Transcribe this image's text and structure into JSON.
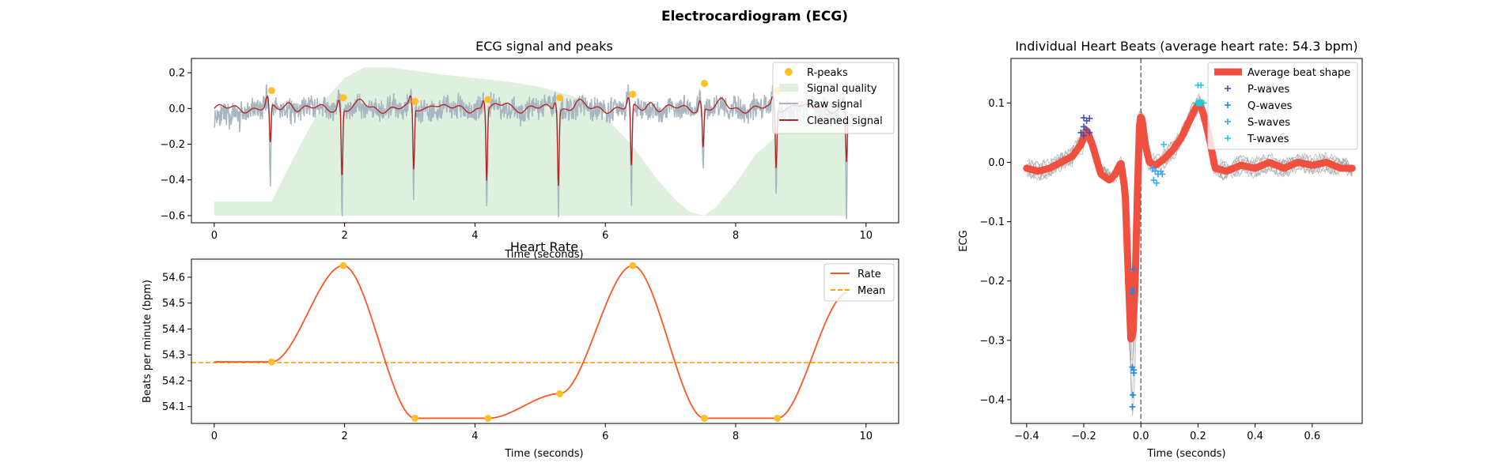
{
  "figure": {
    "title": "Electrocardiogram (ECG)"
  },
  "colors": {
    "rpeak": "#FFC02C",
    "quality": "#DFF0DF",
    "raw": "#A8B6C2",
    "cleaned": "#B22222",
    "rate": "#FF5722",
    "mean": "#FFA000",
    "avg": "#F05040",
    "beats": "#9E9E9E",
    "p": "#3F51B5",
    "q": "#1E88E5",
    "s": "#42A5F5",
    "t": "#26C6DA",
    "vline": "#707070"
  },
  "chart_data": [
    {
      "id": "ecg",
      "type": "line",
      "title": "ECG signal and peaks",
      "xlabel": "Time (seconds)",
      "ylabel": "",
      "xlim": [
        -0.35,
        10.5
      ],
      "ylim": [
        -0.64,
        0.28
      ],
      "xticks": [
        0,
        2,
        4,
        6,
        8,
        10
      ],
      "yticks": [
        -0.6,
        -0.4,
        -0.2,
        0.0,
        0.2
      ],
      "ytick_labels": [
        "−0.6",
        "−0.4",
        "−0.2",
        "0.0",
        "0.2"
      ],
      "legend": {
        "placement": "top-right",
        "entries": [
          "R-peaks",
          "Signal quality",
          "Raw signal",
          "Cleaned signal"
        ]
      },
      "rpeaks": {
        "name": "R-peaks",
        "x": [
          0.88,
          1.98,
          3.08,
          4.2,
          5.3,
          6.42,
          7.52,
          8.64
        ],
        "y": [
          0.1,
          0.06,
          0.04,
          0.05,
          0.06,
          0.08,
          0.14,
          0.1
        ]
      },
      "troughs": {
        "x": [
          0.86,
          1.96,
          3.06,
          4.18,
          5.28,
          6.4,
          7.5,
          8.62,
          9.7
        ],
        "raw": [
          -0.45,
          -0.6,
          -0.48,
          -0.55,
          -0.57,
          -0.55,
          -0.36,
          -0.5,
          -0.6
        ],
        "cleaned": [
          -0.22,
          -0.38,
          -0.35,
          -0.4,
          -0.42,
          -0.35,
          -0.22,
          -0.34,
          -0.3
        ]
      },
      "quality": {
        "name": "Signal quality",
        "x": [
          0,
          0.88,
          1.1,
          1.4,
          1.7,
          2.0,
          2.3,
          2.7,
          3.1,
          3.5,
          4.0,
          4.5,
          5.0,
          5.5,
          6.0,
          6.4,
          6.8,
          7.1,
          7.3,
          7.52,
          7.7,
          8.0,
          8.3,
          8.64,
          9.0,
          9.4,
          9.7
        ],
        "y": [
          -0.52,
          -0.52,
          -0.36,
          -0.15,
          0.05,
          0.17,
          0.23,
          0.23,
          0.21,
          0.19,
          0.17,
          0.15,
          0.12,
          0.07,
          -0.05,
          -0.2,
          -0.4,
          -0.52,
          -0.58,
          -0.6,
          -0.55,
          -0.42,
          -0.26,
          -0.15,
          0.02,
          0.12,
          0.17
        ]
      },
      "raw_signal": {
        "name": "Raw signal",
        "x_range": [
          0,
          9.72
        ]
      },
      "cleaned_signal": {
        "name": "Cleaned signal",
        "x_range": [
          0,
          9.72
        ]
      }
    },
    {
      "id": "rate",
      "type": "line",
      "title": "Heart Rate",
      "xlabel": "Time (seconds)",
      "ylabel": "Beats per minute (bpm)",
      "xlim": [
        -0.35,
        10.5
      ],
      "ylim": [
        54.035,
        54.67
      ],
      "xticks": [
        0,
        2,
        4,
        6,
        8,
        10
      ],
      "yticks": [
        54.1,
        54.2,
        54.3,
        54.4,
        54.5,
        54.6
      ],
      "legend": {
        "placement": "top-right",
        "entries": [
          "Rate",
          "Mean"
        ]
      },
      "rate": {
        "name": "Rate",
        "points_x": [
          0,
          0.88,
          1.98,
          3.08,
          4.2,
          5.3,
          6.42,
          7.52,
          8.64,
          9.72
        ],
        "points_y": [
          54.273,
          54.273,
          54.645,
          54.055,
          54.055,
          54.15,
          54.645,
          54.055,
          54.055,
          54.54
        ]
      },
      "markers": {
        "x": [
          0.88,
          1.98,
          3.08,
          4.2,
          5.3,
          6.42,
          7.52,
          8.64
        ],
        "y": [
          54.273,
          54.645,
          54.055,
          54.055,
          54.15,
          54.645,
          54.055,
          54.055
        ]
      },
      "mean": {
        "name": "Mean",
        "value": 54.27
      }
    },
    {
      "id": "beats",
      "type": "line",
      "title": "Individual Heart Beats (average heart rate: 54.3 bpm)",
      "xlabel": "Time (seconds)",
      "ylabel": "ECG",
      "xlim": [
        -0.455,
        0.775
      ],
      "ylim": [
        -0.44,
        0.175
      ],
      "xticks": [
        -0.4,
        -0.2,
        0.0,
        0.2,
        0.4,
        0.6
      ],
      "xtick_labels": [
        "−0.4",
        "−0.2",
        "0.0",
        "0.2",
        "0.4",
        "0.6"
      ],
      "yticks": [
        -0.4,
        -0.3,
        -0.2,
        -0.1,
        0.0,
        0.1
      ],
      "ytick_labels": [
        "−0.4",
        "−0.3",
        "−0.2",
        "−0.1",
        "0.0",
        "0.1"
      ],
      "legend": {
        "placement": "top-right",
        "entries": [
          "Average beat shape",
          "P-waves",
          "Q-waves",
          "S-waves",
          "T-waves"
        ]
      },
      "average": {
        "name": "Average beat shape",
        "x": [
          -0.4,
          -0.36,
          -0.32,
          -0.28,
          -0.24,
          -0.21,
          -0.19,
          -0.17,
          -0.14,
          -0.11,
          -0.09,
          -0.07,
          -0.055,
          -0.045,
          -0.035,
          -0.028,
          -0.02,
          -0.012,
          -0.005,
          0.0,
          0.005,
          0.015,
          0.03,
          0.05,
          0.08,
          0.11,
          0.14,
          0.17,
          0.19,
          0.205,
          0.22,
          0.24,
          0.26,
          0.3,
          0.35,
          0.4,
          0.45,
          0.5,
          0.55,
          0.6,
          0.65,
          0.7,
          0.74
        ],
        "y": [
          -0.01,
          -0.015,
          -0.01,
          0.0,
          0.01,
          0.03,
          0.055,
          0.03,
          -0.02,
          -0.03,
          -0.02,
          0.0,
          -0.05,
          -0.18,
          -0.3,
          -0.29,
          -0.2,
          -0.05,
          0.06,
          0.08,
          0.07,
          0.03,
          0.0,
          -0.005,
          0.005,
          0.02,
          0.04,
          0.07,
          0.09,
          0.1,
          0.08,
          0.04,
          -0.01,
          -0.015,
          -0.005,
          -0.01,
          0.0,
          -0.01,
          0.0,
          -0.005,
          0.0,
          -0.01,
          -0.01
        ]
      },
      "p_waves": {
        "name": "P-waves",
        "x": [
          -0.2,
          -0.19,
          -0.18,
          -0.2,
          -0.19,
          -0.21,
          -0.18,
          -0.2
        ],
        "y": [
          0.075,
          0.07,
          0.074,
          0.06,
          0.055,
          0.05,
          0.05,
          0.045
        ]
      },
      "q_waves": {
        "name": "Q-waves",
        "x": [
          -0.03,
          -0.028,
          -0.025,
          -0.03,
          -0.025,
          -0.03,
          -0.028,
          -0.025
        ],
        "y": [
          -0.412,
          -0.392,
          -0.355,
          -0.345,
          -0.35,
          -0.22,
          -0.215,
          -0.18
        ]
      },
      "s_waves": {
        "name": "S-waves",
        "x": [
          0.04,
          0.05,
          0.06,
          0.07,
          0.055,
          0.045,
          0.06,
          0.075
        ],
        "y": [
          -0.01,
          -0.015,
          -0.02,
          -0.015,
          -0.035,
          -0.03,
          -0.02,
          -0.02
        ]
      },
      "t_waves": {
        "name": "T-waves",
        "x": [
          0.2,
          0.21,
          0.205,
          0.215,
          0.195,
          0.22,
          0.21,
          0.08
        ],
        "y": [
          0.13,
          0.1,
          0.1,
          0.1,
          0.1,
          0.1,
          0.13,
          0.03
        ]
      }
    }
  ]
}
